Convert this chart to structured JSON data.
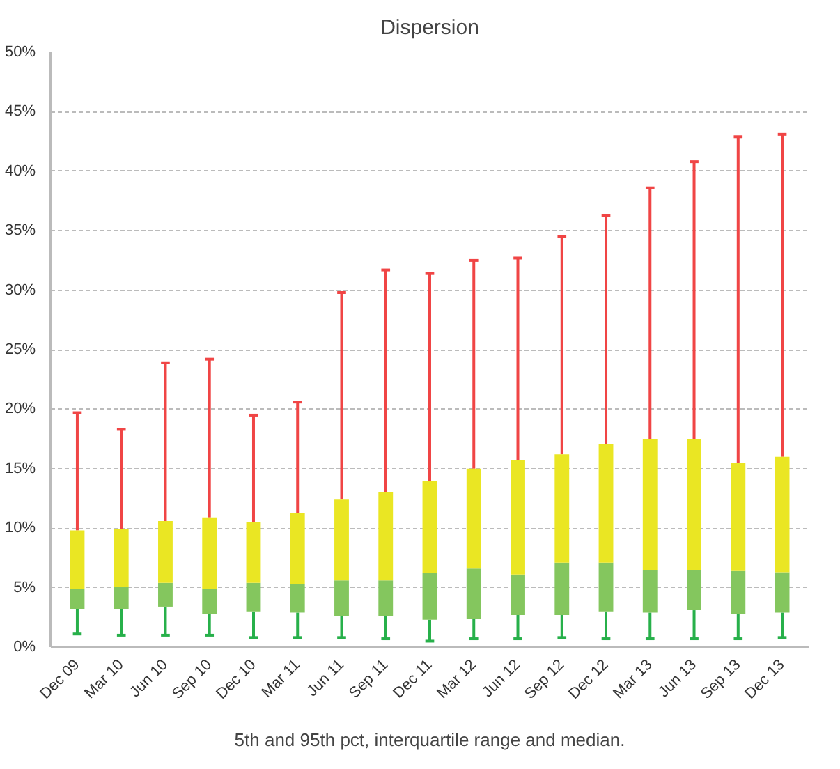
{
  "chart_data": {
    "type": "box",
    "title": "Dispersion",
    "categories": [
      "Dec 09",
      "Mar 10",
      "Jun 10",
      "Sep 10",
      "Dec 10",
      "Mar 11",
      "Jun 11",
      "Sep 11",
      "Dec 11",
      "Mar 12",
      "Jun 12",
      "Sep 12",
      "Dec 12",
      "Mar 13",
      "Jun 13",
      "Sep 13",
      "Dec 13"
    ],
    "boxes": [
      {
        "low": 1.1,
        "q1": 3.2,
        "median": 4.9,
        "q3": 9.8,
        "high": 19.7
      },
      {
        "low": 1.0,
        "q1": 3.2,
        "median": 5.1,
        "q3": 9.9,
        "high": 18.3
      },
      {
        "low": 1.0,
        "q1": 3.4,
        "median": 5.4,
        "q3": 10.6,
        "high": 23.9
      },
      {
        "low": 1.0,
        "q1": 2.8,
        "median": 4.9,
        "q3": 10.9,
        "high": 24.2
      },
      {
        "low": 0.8,
        "q1": 3.0,
        "median": 5.4,
        "q3": 10.5,
        "high": 19.5
      },
      {
        "low": 0.8,
        "q1": 2.9,
        "median": 5.3,
        "q3": 11.3,
        "high": 20.6
      },
      {
        "low": 0.8,
        "q1": 2.6,
        "median": 5.6,
        "q3": 12.4,
        "high": 29.8
      },
      {
        "low": 0.7,
        "q1": 2.6,
        "median": 5.6,
        "q3": 13.0,
        "high": 31.7
      },
      {
        "low": 0.5,
        "q1": 2.3,
        "median": 6.2,
        "q3": 14.0,
        "high": 31.4
      },
      {
        "low": 0.7,
        "q1": 2.4,
        "median": 6.6,
        "q3": 15.0,
        "high": 32.5
      },
      {
        "low": 0.7,
        "q1": 2.7,
        "median": 6.1,
        "q3": 15.7,
        "high": 32.7
      },
      {
        "low": 0.8,
        "q1": 2.7,
        "median": 7.1,
        "q3": 16.2,
        "high": 34.5
      },
      {
        "low": 0.7,
        "q1": 3.0,
        "median": 7.1,
        "q3": 17.1,
        "high": 36.3
      },
      {
        "low": 0.7,
        "q1": 2.9,
        "median": 6.5,
        "q3": 17.5,
        "high": 38.6
      },
      {
        "low": 0.7,
        "q1": 3.1,
        "median": 6.5,
        "q3": 17.5,
        "high": 40.8
      },
      {
        "low": 0.7,
        "q1": 2.8,
        "median": 6.4,
        "q3": 15.5,
        "high": 42.9
      },
      {
        "low": 0.8,
        "q1": 2.9,
        "median": 6.3,
        "q3": 16.0,
        "high": 43.1
      }
    ],
    "ylim": [
      0,
      50
    ],
    "yticks": [
      {
        "value": 0,
        "label": "0%"
      },
      {
        "value": 5,
        "label": "5%"
      },
      {
        "value": 10,
        "label": "10%"
      },
      {
        "value": 15,
        "label": "15%"
      },
      {
        "value": 20,
        "label": "20%"
      },
      {
        "value": 25,
        "label": "25%"
      },
      {
        "value": 30,
        "label": "30%"
      },
      {
        "value": 35,
        "label": "35%"
      },
      {
        "value": 40,
        "label": "40%"
      },
      {
        "value": 45,
        "label": "45%"
      },
      {
        "value": 50,
        "label": "50%"
      }
    ],
    "grid": "y",
    "annotations": [
      "5th and 95th pct, interquartile range and median."
    ]
  }
}
